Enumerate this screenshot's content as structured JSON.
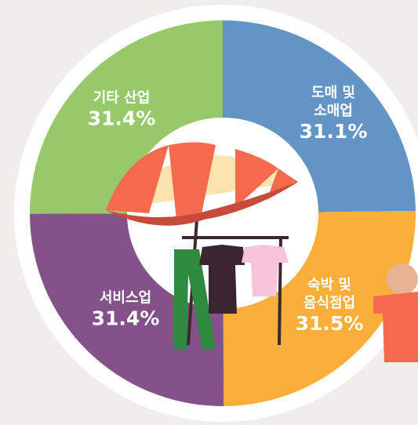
{
  "chart_data": {
    "type": "donut",
    "categories": [
      "도매 및\n소매업",
      "숙박 및\n음식점업",
      "서비스업",
      "기타 산업"
    ],
    "values": [
      31.1,
      31.5,
      31.4,
      31.4
    ],
    "value_labels": [
      "31.1%",
      "31.5%",
      "31.4%",
      "31.4%"
    ],
    "colors": [
      "#6394c6",
      "#f9ae3a",
      "#845188",
      "#97c96a"
    ]
  }
}
